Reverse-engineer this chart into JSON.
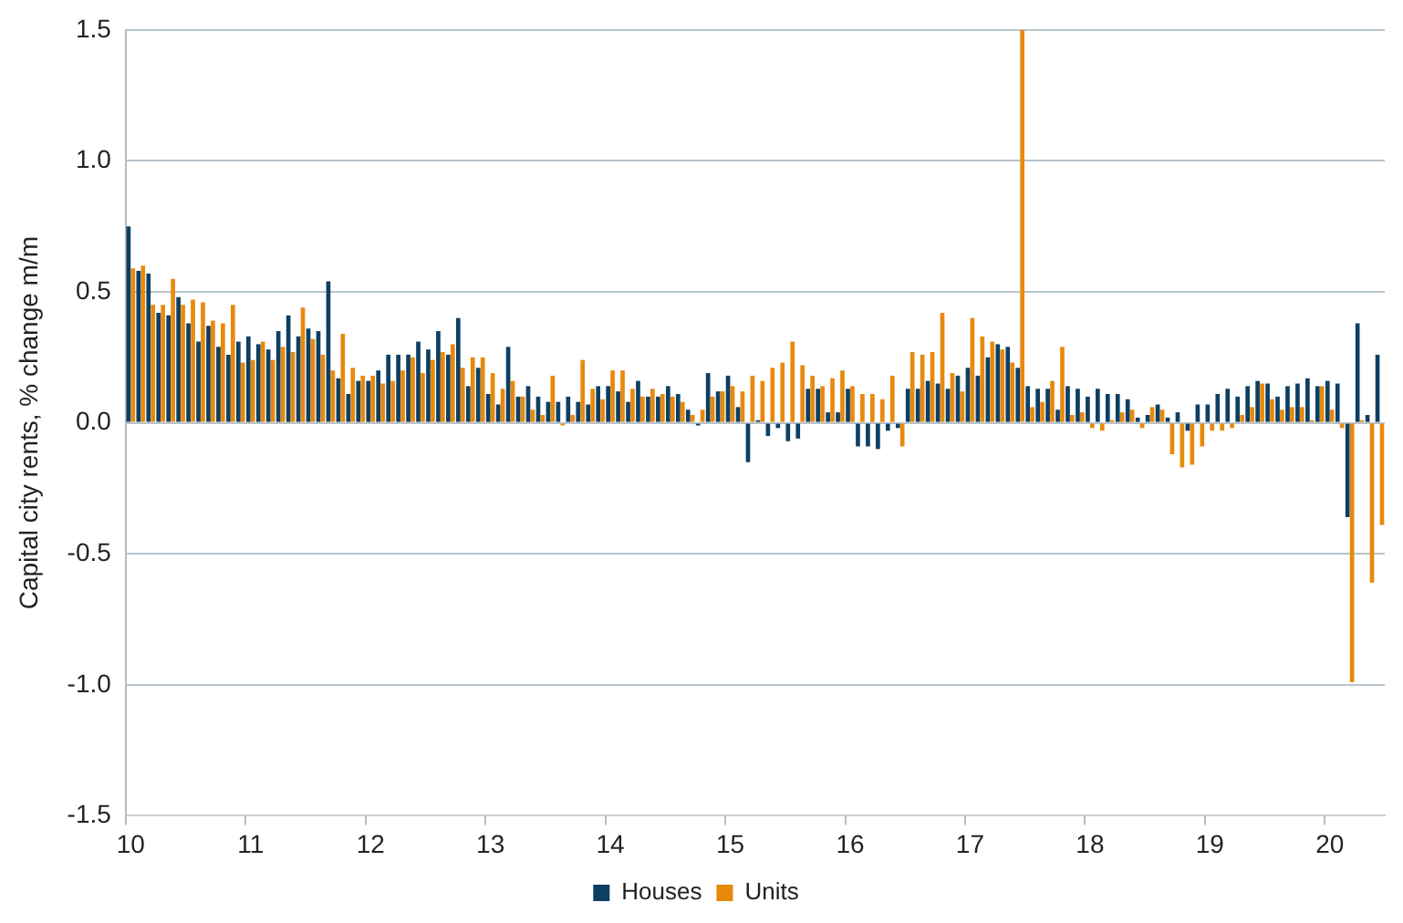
{
  "chart_data": {
    "type": "bar",
    "ylabel": "Capital city rents, % change m/m",
    "categories": [
      "10",
      null,
      null,
      null,
      null,
      null,
      null,
      null,
      null,
      null,
      null,
      null,
      "11",
      null,
      null,
      null,
      null,
      null,
      null,
      null,
      null,
      null,
      null,
      null,
      "12",
      null,
      null,
      null,
      null,
      null,
      null,
      null,
      null,
      null,
      null,
      null,
      "13",
      null,
      null,
      null,
      null,
      null,
      null,
      null,
      null,
      null,
      null,
      null,
      "14",
      null,
      null,
      null,
      null,
      null,
      null,
      null,
      null,
      null,
      null,
      null,
      "15",
      null,
      null,
      null,
      null,
      null,
      null,
      null,
      null,
      null,
      null,
      null,
      "16",
      null,
      null,
      null,
      null,
      null,
      null,
      null,
      null,
      null,
      null,
      null,
      "17",
      null,
      null,
      null,
      null,
      null,
      null,
      null,
      null,
      null,
      null,
      null,
      "18",
      null,
      null,
      null,
      null,
      null,
      null,
      null,
      null,
      null,
      null,
      null,
      "19",
      null,
      null,
      null,
      null,
      null,
      null,
      null,
      null,
      null,
      null,
      null,
      "20",
      null,
      null,
      null,
      null,
      null
    ],
    "series": [
      {
        "name": "Houses",
        "color": "#0d3f63",
        "values": [
          0.75,
          0.58,
          0.57,
          0.42,
          0.41,
          0.48,
          0.38,
          0.31,
          0.37,
          0.29,
          0.26,
          0.31,
          0.33,
          0.3,
          0.28,
          0.35,
          0.41,
          0.33,
          0.36,
          0.35,
          0.54,
          0.17,
          0.11,
          0.16,
          0.16,
          0.2,
          0.26,
          0.26,
          0.26,
          0.31,
          0.28,
          0.35,
          0.26,
          0.4,
          0.14,
          0.21,
          0.11,
          0.07,
          0.29,
          0.1,
          0.14,
          0.1,
          0.08,
          0.08,
          0.1,
          0.08,
          0.07,
          0.14,
          0.14,
          0.12,
          0.08,
          0.16,
          0.1,
          0.1,
          0.14,
          0.11,
          0.05,
          -0.01,
          0.19,
          0.12,
          0.18,
          0.06,
          -0.15,
          0.01,
          -0.05,
          -0.02,
          -0.07,
          -0.06,
          0.13,
          0.13,
          0.04,
          0.04,
          0.13,
          -0.09,
          -0.09,
          -0.1,
          -0.03,
          -0.02,
          0.13,
          0.13,
          0.16,
          0.15,
          0.13,
          0.18,
          0.21,
          0.18,
          0.25,
          0.3,
          0.29,
          0.21,
          0.14,
          0.13,
          0.13,
          0.05,
          0.14,
          0.13,
          0.1,
          0.13,
          0.11,
          0.11,
          0.09,
          0.02,
          0.03,
          0.07,
          0.02,
          0.04,
          -0.03,
          0.07,
          0.07,
          0.11,
          0.13,
          0.1,
          0.14,
          0.16,
          0.15,
          0.1,
          0.14,
          0.15,
          0.17,
          0.14,
          0.16,
          0.15,
          -0.36,
          0.38,
          0.03,
          0.26
        ]
      },
      {
        "name": "Units",
        "color": "#e8890c",
        "values": [
          0.59,
          0.6,
          0.45,
          0.45,
          0.55,
          0.45,
          0.47,
          0.46,
          0.39,
          0.38,
          0.45,
          0.23,
          0.24,
          0.31,
          0.24,
          0.29,
          0.27,
          0.44,
          0.32,
          0.26,
          0.2,
          0.34,
          0.21,
          0.18,
          0.18,
          0.15,
          0.16,
          0.2,
          0.25,
          0.19,
          0.24,
          0.27,
          0.3,
          0.21,
          0.25,
          0.25,
          0.19,
          0.13,
          0.16,
          0.1,
          0.05,
          0.03,
          0.18,
          -0.01,
          0.03,
          0.24,
          0.13,
          0.09,
          0.2,
          0.2,
          0.13,
          0.1,
          0.13,
          0.11,
          0.1,
          0.08,
          0.03,
          0.05,
          0.1,
          0.12,
          0.14,
          0.12,
          0.18,
          0.16,
          0.21,
          0.23,
          0.31,
          0.22,
          0.18,
          0.14,
          0.17,
          0.2,
          0.14,
          0.11,
          0.11,
          0.09,
          0.18,
          -0.09,
          0.27,
          0.26,
          0.27,
          0.42,
          0.19,
          0.12,
          0.4,
          0.33,
          0.31,
          0.28,
          0.23,
          1.5,
          0.06,
          0.08,
          0.16,
          0.29,
          0.03,
          0.04,
          -0.02,
          -0.03,
          0.01,
          0.04,
          0.05,
          -0.02,
          0.06,
          0.05,
          -0.12,
          -0.17,
          -0.16,
          -0.09,
          -0.03,
          -0.03,
          -0.02,
          0.03,
          0.06,
          0.15,
          0.09,
          0.05,
          0.06,
          0.06,
          0.01,
          0.14,
          0.05,
          -0.02,
          -0.99,
          0.01,
          -0.61,
          -0.39
        ]
      }
    ],
    "ylim": [
      -1.5,
      1.5
    ],
    "yticks": [
      {
        "value": -1.5,
        "label": "-1.5"
      },
      {
        "value": -1.0,
        "label": "-1.0"
      },
      {
        "value": -0.5,
        "label": "-0.5"
      },
      {
        "value": 0,
        "label": "0.0"
      },
      {
        "value": 0.5,
        "label": "0.5"
      },
      {
        "value": 1.0,
        "label": "1.0"
      },
      {
        "value": 1.5,
        "label": "1.5"
      }
    ],
    "grid": "y",
    "legend": "bottom"
  }
}
